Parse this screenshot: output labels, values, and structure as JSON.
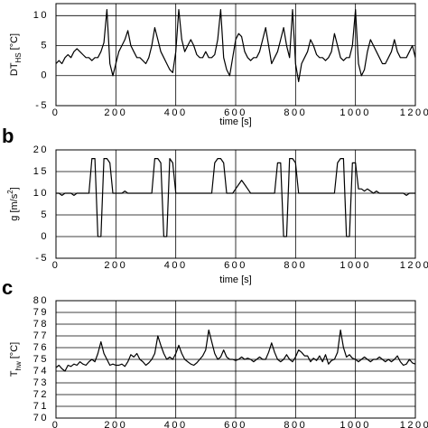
{
  "chart_data": [
    {
      "type": "line",
      "xlabel": "time [s]",
      "ylabel": {
        "main": "DT",
        "sub": "HS",
        "unit": "[°C]"
      },
      "xlim": [
        0,
        1200
      ],
      "xticks": [
        0,
        200,
        400,
        600,
        800,
        1000,
        1200
      ],
      "ylim": [
        -5,
        12
      ],
      "yticks": [
        -5,
        0,
        5,
        10
      ],
      "grid": true,
      "color": "#000000",
      "x": [
        0,
        10,
        20,
        30,
        40,
        50,
        60,
        70,
        80,
        90,
        100,
        110,
        120,
        130,
        140,
        150,
        160,
        170,
        180,
        190,
        200,
        210,
        220,
        230,
        240,
        250,
        260,
        270,
        280,
        290,
        300,
        310,
        320,
        330,
        340,
        350,
        360,
        370,
        380,
        390,
        400,
        410,
        420,
        430,
        440,
        450,
        460,
        470,
        480,
        490,
        500,
        510,
        520,
        530,
        540,
        550,
        560,
        570,
        580,
        590,
        600,
        610,
        620,
        630,
        640,
        650,
        660,
        670,
        680,
        690,
        700,
        710,
        720,
        730,
        740,
        750,
        760,
        770,
        780,
        790,
        800,
        810,
        820,
        830,
        840,
        850,
        860,
        870,
        880,
        890,
        900,
        910,
        920,
        930,
        940,
        950,
        960,
        970,
        980,
        990,
        1000,
        1010,
        1020,
        1030,
        1040,
        1050,
        1060,
        1070,
        1080,
        1090,
        1100,
        1110,
        1120,
        1130,
        1140,
        1150,
        1160,
        1170,
        1180,
        1190,
        1200
      ],
      "values": [
        2,
        2.5,
        2,
        3,
        3.5,
        3,
        4,
        4.5,
        4,
        3.5,
        3,
        3,
        2.5,
        3,
        3,
        4,
        5.5,
        11,
        2,
        0,
        2,
        4,
        5,
        6,
        7.5,
        5,
        4,
        3,
        3,
        2.5,
        2,
        3,
        5,
        8,
        6,
        4,
        3,
        2,
        1,
        0.5,
        4,
        11,
        6,
        4,
        5,
        6,
        5,
        3.5,
        3,
        3,
        4,
        3,
        3,
        3.5,
        6,
        11,
        3,
        1,
        0,
        3,
        6,
        7,
        6.5,
        4,
        3,
        2.5,
        3,
        3,
        4,
        6,
        8,
        5,
        2,
        3,
        4,
        6,
        8,
        5,
        3,
        11,
        2,
        -1,
        2,
        3,
        4,
        6,
        5,
        3.5,
        3,
        3,
        2.5,
        3,
        4,
        7,
        5,
        3,
        2.5,
        3,
        3,
        5,
        11,
        2,
        0,
        1,
        4,
        6,
        5,
        4,
        3,
        2,
        2,
        3,
        4,
        6,
        4,
        3,
        3,
        3,
        4,
        5,
        3
      ]
    },
    {
      "type": "line",
      "panel_label": "b",
      "xlabel": "time [s]",
      "ylabel": {
        "main": "g [m/s",
        "sup": "2",
        "unit": "]"
      },
      "xlim": [
        0,
        1200
      ],
      "xticks": [
        0,
        200,
        400,
        600,
        800,
        1000,
        1200
      ],
      "ylim": [
        -5,
        20
      ],
      "yticks": [
        -5,
        0,
        5,
        10,
        15,
        20
      ],
      "grid": true,
      "color": "#000000",
      "x": [
        0,
        10,
        20,
        30,
        40,
        50,
        60,
        70,
        80,
        90,
        100,
        110,
        120,
        130,
        140,
        150,
        160,
        170,
        180,
        190,
        200,
        210,
        220,
        230,
        240,
        250,
        260,
        270,
        280,
        290,
        300,
        310,
        320,
        330,
        340,
        350,
        360,
        370,
        380,
        390,
        400,
        410,
        420,
        430,
        440,
        450,
        460,
        470,
        480,
        490,
        500,
        510,
        520,
        530,
        540,
        550,
        560,
        570,
        580,
        590,
        600,
        610,
        620,
        630,
        640,
        650,
        660,
        670,
        680,
        690,
        700,
        710,
        720,
        730,
        740,
        750,
        760,
        770,
        780,
        790,
        800,
        810,
        820,
        830,
        840,
        850,
        860,
        870,
        880,
        890,
        900,
        910,
        920,
        930,
        940,
        950,
        960,
        970,
        980,
        990,
        1000,
        1010,
        1020,
        1030,
        1040,
        1050,
        1060,
        1070,
        1080,
        1090,
        1100,
        1110,
        1120,
        1130,
        1140,
        1150,
        1160,
        1170,
        1180,
        1190,
        1200
      ],
      "values": [
        10,
        10,
        9.5,
        10,
        10,
        10,
        9.5,
        10,
        10,
        10,
        10,
        10,
        18,
        18,
        0,
        0,
        18,
        18,
        17,
        10,
        10,
        10,
        10,
        10.5,
        10,
        10,
        10,
        10,
        10,
        10,
        10,
        10,
        10,
        18,
        18,
        17,
        0,
        0,
        18,
        17,
        10,
        10,
        10,
        10,
        10,
        10,
        10,
        10,
        10,
        10,
        10,
        10,
        10,
        17,
        18,
        18,
        17,
        10,
        10,
        10,
        11,
        12,
        13,
        12,
        11,
        10,
        10,
        10,
        10,
        10,
        10,
        10,
        10,
        10,
        17,
        17,
        0,
        0,
        18,
        18,
        17,
        10,
        10,
        10,
        10,
        10,
        10,
        10,
        10,
        10,
        10,
        10,
        10,
        10,
        17,
        18,
        18,
        0,
        0,
        17,
        17,
        11,
        11,
        10.5,
        11,
        10.5,
        10,
        10.5,
        10,
        10,
        10,
        10,
        10,
        10,
        10,
        10,
        10,
        9.5,
        10,
        10,
        10
      ]
    },
    {
      "type": "line",
      "panel_label": "c",
      "ylabel": {
        "main": "T",
        "sub": "hw",
        "unit": "[°C]"
      },
      "xlim": [
        0,
        1200
      ],
      "xticks": [
        0,
        200,
        400,
        600,
        800,
        1000,
        1200
      ],
      "ylim": [
        70,
        80
      ],
      "yticks": [
        70,
        71,
        72,
        73,
        74,
        75,
        76,
        77,
        78,
        79,
        80
      ],
      "grid": true,
      "color": "#000000",
      "x": [
        0,
        10,
        20,
        30,
        40,
        50,
        60,
        70,
        80,
        90,
        100,
        110,
        120,
        130,
        140,
        150,
        160,
        170,
        180,
        190,
        200,
        210,
        220,
        230,
        240,
        250,
        260,
        270,
        280,
        290,
        300,
        310,
        320,
        330,
        340,
        350,
        360,
        370,
        380,
        390,
        400,
        410,
        420,
        430,
        440,
        450,
        460,
        470,
        480,
        490,
        500,
        510,
        520,
        530,
        540,
        550,
        560,
        570,
        580,
        590,
        600,
        610,
        620,
        630,
        640,
        650,
        660,
        670,
        680,
        690,
        700,
        710,
        720,
        730,
        740,
        750,
        760,
        770,
        780,
        790,
        800,
        810,
        820,
        830,
        840,
        850,
        860,
        870,
        880,
        890,
        900,
        910,
        920,
        930,
        940,
        950,
        960,
        970,
        980,
        990,
        1000,
        1010,
        1020,
        1030,
        1040,
        1050,
        1060,
        1070,
        1080,
        1090,
        1100,
        1110,
        1120,
        1130,
        1140,
        1150,
        1160,
        1170,
        1180,
        1190,
        1200
      ],
      "values": [
        74.3,
        74.5,
        74.2,
        74,
        74.5,
        74.4,
        74.6,
        74.5,
        74.8,
        74.6,
        74.5,
        74.8,
        75,
        74.8,
        75.5,
        76.5,
        75.5,
        75,
        74.5,
        74.6,
        74.5,
        74.5,
        74.6,
        74.4,
        74.8,
        75.4,
        75.2,
        75.5,
        75,
        74.8,
        74.5,
        74.7,
        75,
        75.5,
        77,
        76.2,
        75.5,
        75,
        75.2,
        75,
        75.5,
        76.2,
        75.5,
        75,
        74.8,
        74.6,
        74.5,
        74.7,
        75,
        75.3,
        75.8,
        77.5,
        76.5,
        75.5,
        75,
        75.2,
        75.8,
        75.2,
        75,
        75,
        74.9,
        75,
        75.2,
        75,
        75.1,
        75,
        74.8,
        75,
        75.2,
        75,
        75,
        75.6,
        76.4,
        75.6,
        75,
        74.8,
        75,
        75.4,
        75,
        74.8,
        75.2,
        75.8,
        75.6,
        75.3,
        75.3,
        74.8,
        75.1,
        74.9,
        75.3,
        74.8,
        75.4,
        74.6,
        74.9,
        75,
        75.6,
        77.5,
        76,
        75.2,
        75.4,
        75.1,
        75,
        74.8,
        75,
        75.2,
        75,
        74.8,
        75,
        75,
        75.2,
        75,
        74.8,
        75,
        74.8,
        75,
        75.3,
        74.8,
        74.5,
        74.6,
        75,
        74.7,
        74.6
      ]
    }
  ]
}
